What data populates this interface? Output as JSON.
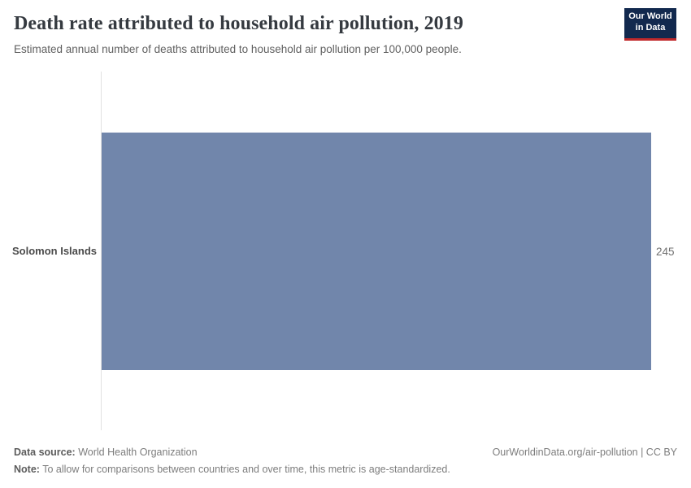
{
  "header": {
    "title": "Death rate attributed to household air pollution, 2019",
    "subtitle": "Estimated annual number of deaths attributed to household air pollution per 100,000 people.",
    "logo": {
      "line1": "Our World",
      "line2": "in Data",
      "bg_color": "#12294e",
      "accent_color": "#c0292b"
    }
  },
  "chart_data": {
    "type": "bar",
    "orientation": "horizontal",
    "title": "Death rate attributed to household air pollution, 2019",
    "subtitle": "Estimated annual number of deaths attributed to household air pollution per 100,000 people.",
    "categories": [
      "Solomon Islands"
    ],
    "values": [
      245
    ],
    "value_labels": [
      "245"
    ],
    "xlabel": "",
    "ylabel": "",
    "xlim": [
      0,
      245
    ],
    "grid": false,
    "legend": "none",
    "bar_color": "#7186ab"
  },
  "footer": {
    "datasource_label": "Data source:",
    "datasource_value": " World Health Organization",
    "attribution": "OurWorldinData.org/air-pollution | CC BY",
    "note_label": "Note:",
    "note_value": " To allow for comparisons between countries and over time, this metric is age-standardized."
  }
}
